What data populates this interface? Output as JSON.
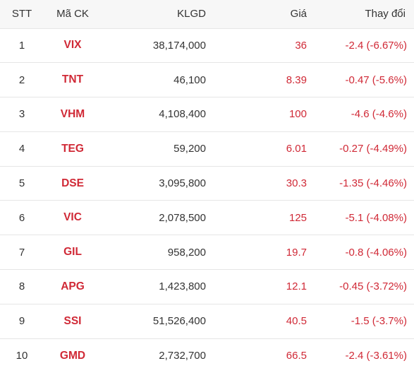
{
  "headers": {
    "stt": "STT",
    "code": "Mã CK",
    "volume": "KLGD",
    "price": "Giá",
    "change": "Thay đổi"
  },
  "colors": {
    "down": "#d02936",
    "text": "#333333",
    "header_bg": "#f7f7f7"
  },
  "rows": [
    {
      "stt": "1",
      "code": "VIX",
      "volume": "38,174,000",
      "price": "36",
      "change": "-2.4 (-6.67%)"
    },
    {
      "stt": "2",
      "code": "TNT",
      "volume": "46,100",
      "price": "8.39",
      "change": "-0.47 (-5.6%)"
    },
    {
      "stt": "3",
      "code": "VHM",
      "volume": "4,108,400",
      "price": "100",
      "change": "-4.6 (-4.6%)"
    },
    {
      "stt": "4",
      "code": "TEG",
      "volume": "59,200",
      "price": "6.01",
      "change": "-0.27 (-4.49%)"
    },
    {
      "stt": "5",
      "code": "DSE",
      "volume": "3,095,800",
      "price": "30.3",
      "change": "-1.35 (-4.46%)"
    },
    {
      "stt": "6",
      "code": "VIC",
      "volume": "2,078,500",
      "price": "125",
      "change": "-5.1 (-4.08%)"
    },
    {
      "stt": "7",
      "code": "GIL",
      "volume": "958,200",
      "price": "19.7",
      "change": "-0.8 (-4.06%)"
    },
    {
      "stt": "8",
      "code": "APG",
      "volume": "1,423,800",
      "price": "12.1",
      "change": "-0.45 (-3.72%)"
    },
    {
      "stt": "9",
      "code": "SSI",
      "volume": "51,526,400",
      "price": "40.5",
      "change": "-1.5 (-3.7%)"
    },
    {
      "stt": "10",
      "code": "GMD",
      "volume": "2,732,700",
      "price": "66.5",
      "change": "-2.4 (-3.61%)"
    }
  ]
}
